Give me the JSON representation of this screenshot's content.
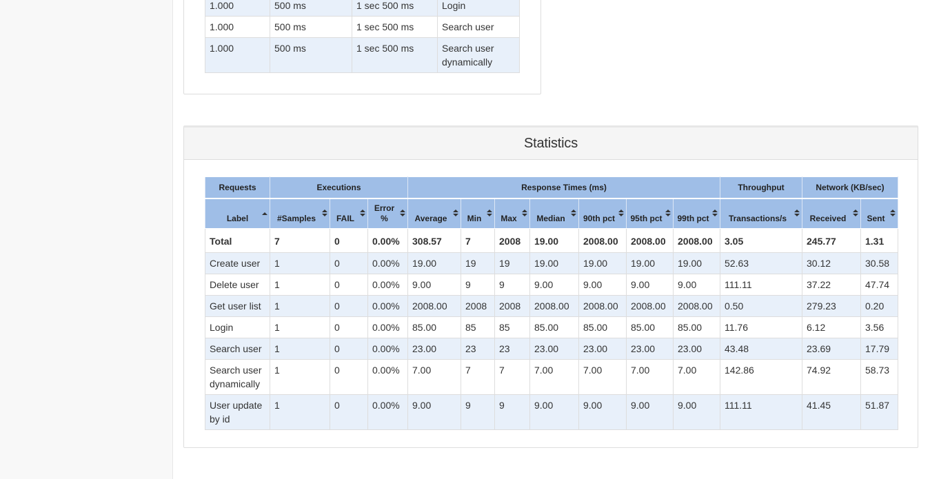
{
  "apdex_rows": [
    {
      "apdex": "1.000",
      "tolerated": "500 ms",
      "frustrated": "1 sec 500 ms",
      "label": "Login"
    },
    {
      "apdex": "1.000",
      "tolerated": "500 ms",
      "frustrated": "1 sec 500 ms",
      "label": "Search user"
    },
    {
      "apdex": "1.000",
      "tolerated": "500 ms",
      "frustrated": "1 sec 500 ms",
      "label": "Search user dynamically"
    }
  ],
  "statistics": {
    "title": "Statistics",
    "groups": {
      "requests": "Requests",
      "executions": "Executions",
      "response_times": "Response Times (ms)",
      "throughput": "Throughput",
      "network": "Network (KB/sec)"
    },
    "columns": [
      "Label",
      "#Samples",
      "FAIL",
      "Error %",
      "Average",
      "Min",
      "Max",
      "Median",
      "90th pct",
      "95th pct",
      "99th pct",
      "Transactions/s",
      "Received",
      "Sent"
    ],
    "total": [
      "Total",
      "7",
      "0",
      "0.00%",
      "308.57",
      "7",
      "2008",
      "19.00",
      "2008.00",
      "2008.00",
      "2008.00",
      "3.05",
      "245.77",
      "1.31"
    ],
    "rows": [
      [
        "Create user",
        "1",
        "0",
        "0.00%",
        "19.00",
        "19",
        "19",
        "19.00",
        "19.00",
        "19.00",
        "19.00",
        "52.63",
        "30.12",
        "30.58"
      ],
      [
        "Delete user",
        "1",
        "0",
        "0.00%",
        "9.00",
        "9",
        "9",
        "9.00",
        "9.00",
        "9.00",
        "9.00",
        "111.11",
        "37.22",
        "47.74"
      ],
      [
        "Get user list",
        "1",
        "0",
        "0.00%",
        "2008.00",
        "2008",
        "2008",
        "2008.00",
        "2008.00",
        "2008.00",
        "2008.00",
        "0.50",
        "279.23",
        "0.20"
      ],
      [
        "Login",
        "1",
        "0",
        "0.00%",
        "85.00",
        "85",
        "85",
        "85.00",
        "85.00",
        "85.00",
        "85.00",
        "11.76",
        "6.12",
        "3.56"
      ],
      [
        "Search user",
        "1",
        "0",
        "0.00%",
        "23.00",
        "23",
        "23",
        "23.00",
        "23.00",
        "23.00",
        "23.00",
        "43.48",
        "23.69",
        "17.79"
      ],
      [
        "Search user dynamically",
        "1",
        "0",
        "0.00%",
        "7.00",
        "7",
        "7",
        "7.00",
        "7.00",
        "7.00",
        "7.00",
        "142.86",
        "74.92",
        "58.73"
      ],
      [
        "User update by id",
        "1",
        "0",
        "0.00%",
        "9.00",
        "9",
        "9",
        "9.00",
        "9.00",
        "9.00",
        "9.00",
        "111.11",
        "41.45",
        "51.87"
      ]
    ]
  },
  "colors": {
    "header_blue": "#9fbee7",
    "row_shade": "#e8f0fa",
    "panel_heading": "#f5f5f5",
    "sidebar": "#f8f8f8"
  },
  "icons": {
    "sort": "sort-both-icon",
    "sort_active": "sort-ascending-icon"
  }
}
